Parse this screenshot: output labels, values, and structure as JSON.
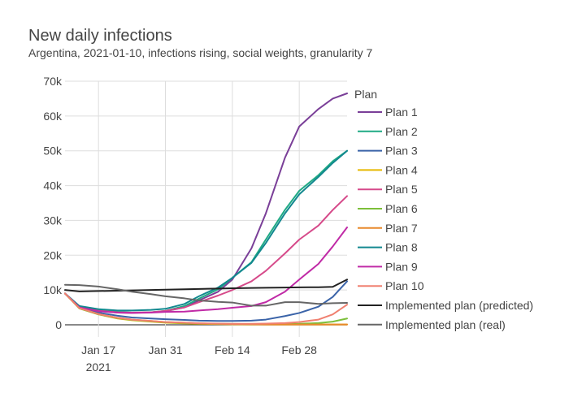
{
  "chart_data": {
    "type": "line",
    "title": "New daily infections",
    "subtitle": "Argentina, 2021-01-10, infections rising, social weights, granularity 7",
    "xlabel": "",
    "ylabel": "",
    "x": [
      "2021-01-10",
      "2021-01-13",
      "2021-01-17",
      "2021-01-21",
      "2021-01-24",
      "2021-01-28",
      "2021-01-31",
      "2021-02-04",
      "2021-02-07",
      "2021-02-11",
      "2021-02-14",
      "2021-02-18",
      "2021-02-21",
      "2021-02-25",
      "2021-02-28",
      "2021-03-04",
      "2021-03-07",
      "2021-03-10"
    ],
    "x_ticks": [
      {
        "date": "2021-01-17",
        "label": "Jan 17",
        "sublabel": "2021"
      },
      {
        "date": "2021-01-31",
        "label": "Jan 31",
        "sublabel": ""
      },
      {
        "date": "2021-02-14",
        "label": "Feb 14",
        "sublabel": ""
      },
      {
        "date": "2021-02-28",
        "label": "Feb 28",
        "sublabel": ""
      }
    ],
    "xlim": [
      "2021-01-10",
      "2021-03-10"
    ],
    "ylim": [
      -3500,
      70000
    ],
    "y_ticks": [
      {
        "value": 0,
        "label": "0"
      },
      {
        "value": 10000,
        "label": "10k"
      },
      {
        "value": 20000,
        "label": "20k"
      },
      {
        "value": 30000,
        "label": "30k"
      },
      {
        "value": 40000,
        "label": "40k"
      },
      {
        "value": 50000,
        "label": "50k"
      },
      {
        "value": 60000,
        "label": "60k"
      },
      {
        "value": 70000,
        "label": "70k"
      }
    ],
    "grid": true,
    "legend": {
      "title": "Plan",
      "position": "right"
    },
    "series": [
      {
        "name": "Plan 1",
        "color": "#7a3f98",
        "values": [
          9000,
          5000,
          4000,
          3500,
          3400,
          3600,
          3900,
          5000,
          7000,
          9500,
          13000,
          22000,
          32000,
          48000,
          57000,
          62000,
          65000,
          66500
        ]
      },
      {
        "name": "Plan 2",
        "color": "#1faa84",
        "values": [
          9000,
          5200,
          4200,
          3700,
          3500,
          3600,
          4000,
          5400,
          7500,
          10200,
          13500,
          18000,
          24500,
          33000,
          38500,
          43000,
          47000,
          50000
        ]
      },
      {
        "name": "Plan 3",
        "color": "#3a63a8",
        "values": [
          9000,
          5000,
          3500,
          2600,
          2100,
          1800,
          1600,
          1400,
          1200,
          1100,
          1100,
          1200,
          1500,
          2500,
          3400,
          5200,
          8000,
          12500
        ]
      },
      {
        "name": "Plan 4",
        "color": "#e6b800",
        "values": [
          9000,
          4700,
          3000,
          1800,
          1300,
          900,
          600,
          400,
          300,
          200,
          150,
          100,
          100,
          100,
          100,
          100,
          100,
          100
        ]
      },
      {
        "name": "Plan 5",
        "color": "#d64a8a",
        "values": [
          9000,
          5100,
          4100,
          3600,
          3500,
          3600,
          4000,
          5000,
          6500,
          8400,
          10000,
          12500,
          15500,
          20500,
          24500,
          28500,
          33000,
          37000
        ]
      },
      {
        "name": "Plan 6",
        "color": "#7cbf3a",
        "values": [
          9000,
          4700,
          3000,
          1900,
          1400,
          1000,
          700,
          500,
          400,
          300,
          250,
          200,
          200,
          250,
          300,
          500,
          900,
          1800
        ]
      },
      {
        "name": "Plan 7",
        "color": "#e8892a",
        "values": [
          9000,
          4800,
          3100,
          2000,
          1500,
          1100,
          800,
          600,
          400,
          300,
          200,
          150,
          100,
          100,
          100,
          100,
          100,
          100
        ]
      },
      {
        "name": "Plan 8",
        "color": "#12888f",
        "values": [
          9000,
          5400,
          4500,
          4100,
          4100,
          4300,
          4600,
          6000,
          8200,
          10700,
          13500,
          17800,
          23500,
          32000,
          37500,
          42500,
          46500,
          50000
        ]
      },
      {
        "name": "Plan 9",
        "color": "#c02aa6",
        "values": [
          9000,
          5000,
          3900,
          3500,
          3400,
          3500,
          3700,
          3800,
          4100,
          4500,
          4900,
          5400,
          6500,
          9500,
          13000,
          17500,
          22500,
          28000
        ]
      },
      {
        "name": "Plan 10",
        "color": "#f08070",
        "values": [
          9000,
          4800,
          3100,
          2000,
          1500,
          1100,
          800,
          600,
          450,
          350,
          300,
          300,
          350,
          500,
          800,
          1500,
          3000,
          5800
        ]
      },
      {
        "name": "Implemented plan (predicted)",
        "color": "#222222",
        "values": [
          10000,
          9600,
          9700,
          9800,
          9900,
          10000,
          10100,
          10200,
          10300,
          10400,
          10500,
          10600,
          10650,
          10700,
          10750,
          10800,
          10900,
          13000
        ]
      },
      {
        "name": "Implemented plan (real)",
        "color": "#666666",
        "values": [
          11500,
          11400,
          11000,
          10200,
          9500,
          8800,
          8200,
          7600,
          7000,
          6600,
          6400,
          5500,
          5500,
          6500,
          6500,
          6000,
          6200,
          6300
        ]
      }
    ]
  }
}
